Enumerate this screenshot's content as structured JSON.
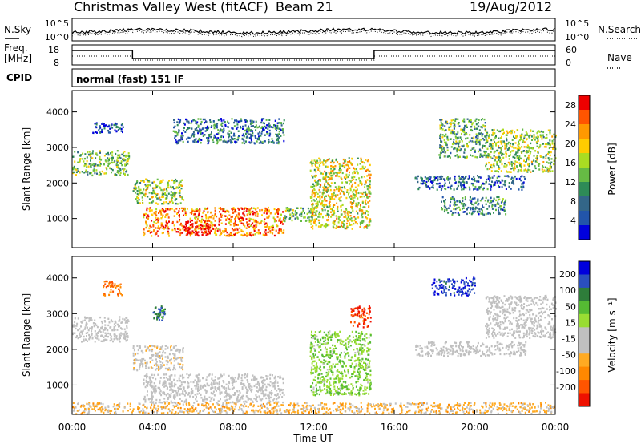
{
  "header": {
    "station": "Christmas Valley West (fitACF)",
    "beam": "Beam 21",
    "date": "19/Aug/2012"
  },
  "top_panels": {
    "nsky_label": "N.Sky",
    "nsky_ticks": [
      "10^5",
      "10^0"
    ],
    "nsearch_label": "N.Search",
    "freq_label_1": "Freq.",
    "freq_label_2": "[MHz]",
    "freq_ticks": [
      "18",
      "8"
    ],
    "nave_label": "Nave",
    "nave_ticks": [
      "60",
      "0"
    ],
    "cpid_label": "CPID",
    "cpid_text": "normal (fast) 151 IF"
  },
  "colors": {
    "power_scale": [
      "#0000dd",
      "#2255aa",
      "#336688",
      "#2e8b57",
      "#66bb44",
      "#aadd22",
      "#ffcc00",
      "#ff9900",
      "#ff5500",
      "#ee0000"
    ],
    "velocity_scale": [
      "#0000dd",
      "#2a4fbf",
      "#2e7d3a",
      "#55bb33",
      "#99dd33",
      "#c0c0c0",
      "#c0c0c0",
      "#ffaa22",
      "#ff8800",
      "#ff5500",
      "#ee1100"
    ],
    "ground_scatter": "#c0c0c0"
  },
  "chart_data": [
    {
      "type": "heatmap",
      "panel": "power",
      "ylabel": "Slant Range [km]",
      "yticks": [
        "1000",
        "2000",
        "3000",
        "4000"
      ],
      "ylim": [
        180,
        4600
      ],
      "colorbar_label": "Power [dB]",
      "colorbar_ticks": [
        "4",
        "8",
        "12",
        "16",
        "20",
        "24",
        "28"
      ],
      "colorbar_range": [
        0,
        30
      ],
      "regions": [
        {
          "t": [
            0.0,
            2.8
          ],
          "r": [
            2200,
            2900
          ],
          "level": 0.45
        },
        {
          "t": [
            1.0,
            2.6
          ],
          "r": [
            3400,
            3700
          ],
          "level": 0.15
        },
        {
          "t": [
            3.0,
            5.5
          ],
          "r": [
            1400,
            2100
          ],
          "level": 0.5
        },
        {
          "t": [
            3.5,
            10.5
          ],
          "r": [
            500,
            1300
          ],
          "level": 0.8
        },
        {
          "t": [
            5.5,
            6.8
          ],
          "r": [
            500,
            900
          ],
          "level": 1.0
        },
        {
          "t": [
            5.0,
            10.5
          ],
          "r": [
            3100,
            3800
          ],
          "level": 0.25
        },
        {
          "t": [
            10.5,
            12.0
          ],
          "r": [
            900,
            1300
          ],
          "level": 0.4
        },
        {
          "t": [
            11.8,
            14.8
          ],
          "r": [
            700,
            2700
          ],
          "level": 0.6
        },
        {
          "t": [
            17.0,
            22.5
          ],
          "r": [
            1800,
            2200
          ],
          "level": 0.2
        },
        {
          "t": [
            18.3,
            21.5
          ],
          "r": [
            1100,
            1600
          ],
          "level": 0.3
        },
        {
          "t": [
            18.2,
            20.5
          ],
          "r": [
            2700,
            3800
          ],
          "level": 0.4
        },
        {
          "t": [
            20.5,
            24.0
          ],
          "r": [
            2300,
            3500
          ],
          "level": 0.5
        }
      ]
    },
    {
      "type": "heatmap",
      "panel": "velocity",
      "ylabel": "Slant Range [km]",
      "yticks": [
        "1000",
        "2000",
        "3000",
        "4000"
      ],
      "ylim": [
        180,
        4600
      ],
      "colorbar_label": "Velocity [m s⁻¹]",
      "colorbar_ticks": [
        "200",
        "100",
        "50",
        "15",
        "-15",
        "-50",
        "-100",
        "-200"
      ],
      "colorbar_range": [
        -250,
        250
      ],
      "regions": [
        {
          "t": [
            0.0,
            2.8
          ],
          "r": [
            2200,
            2900
          ],
          "v": 0,
          "gs": true
        },
        {
          "t": [
            3.5,
            10.5
          ],
          "r": [
            500,
            1300
          ],
          "v": 0,
          "gs": true
        },
        {
          "t": [
            3.0,
            5.5
          ],
          "r": [
            1400,
            2100
          ],
          "v": -40
        },
        {
          "t": [
            4.0,
            4.6
          ],
          "r": [
            2800,
            3200
          ],
          "v": 150
        },
        {
          "t": [
            1.5,
            2.5
          ],
          "r": [
            3500,
            3900
          ],
          "v": -150
        },
        {
          "t": [
            11.8,
            14.8
          ],
          "r": [
            700,
            2500
          ],
          "v": 60
        },
        {
          "t": [
            13.8,
            14.8
          ],
          "r": [
            2600,
            3200
          ],
          "v": -200
        },
        {
          "t": [
            17.8,
            20.0
          ],
          "r": [
            3500,
            4000
          ],
          "v": 200
        },
        {
          "t": [
            17.0,
            22.5
          ],
          "r": [
            1800,
            2200
          ],
          "v": 0,
          "gs": true
        },
        {
          "t": [
            20.5,
            24.0
          ],
          "r": [
            2300,
            3500
          ],
          "v": 0,
          "gs": true
        },
        {
          "t": [
            0.0,
            24.0
          ],
          "r": [
            180,
            500
          ],
          "v": -80
        }
      ]
    }
  ],
  "x_axis": {
    "label": "Time UT",
    "ticks": [
      "00:00",
      "04:00",
      "08:00",
      "12:00",
      "16:00",
      "20:00",
      "00:00"
    ],
    "range_hours": [
      0,
      24
    ]
  }
}
